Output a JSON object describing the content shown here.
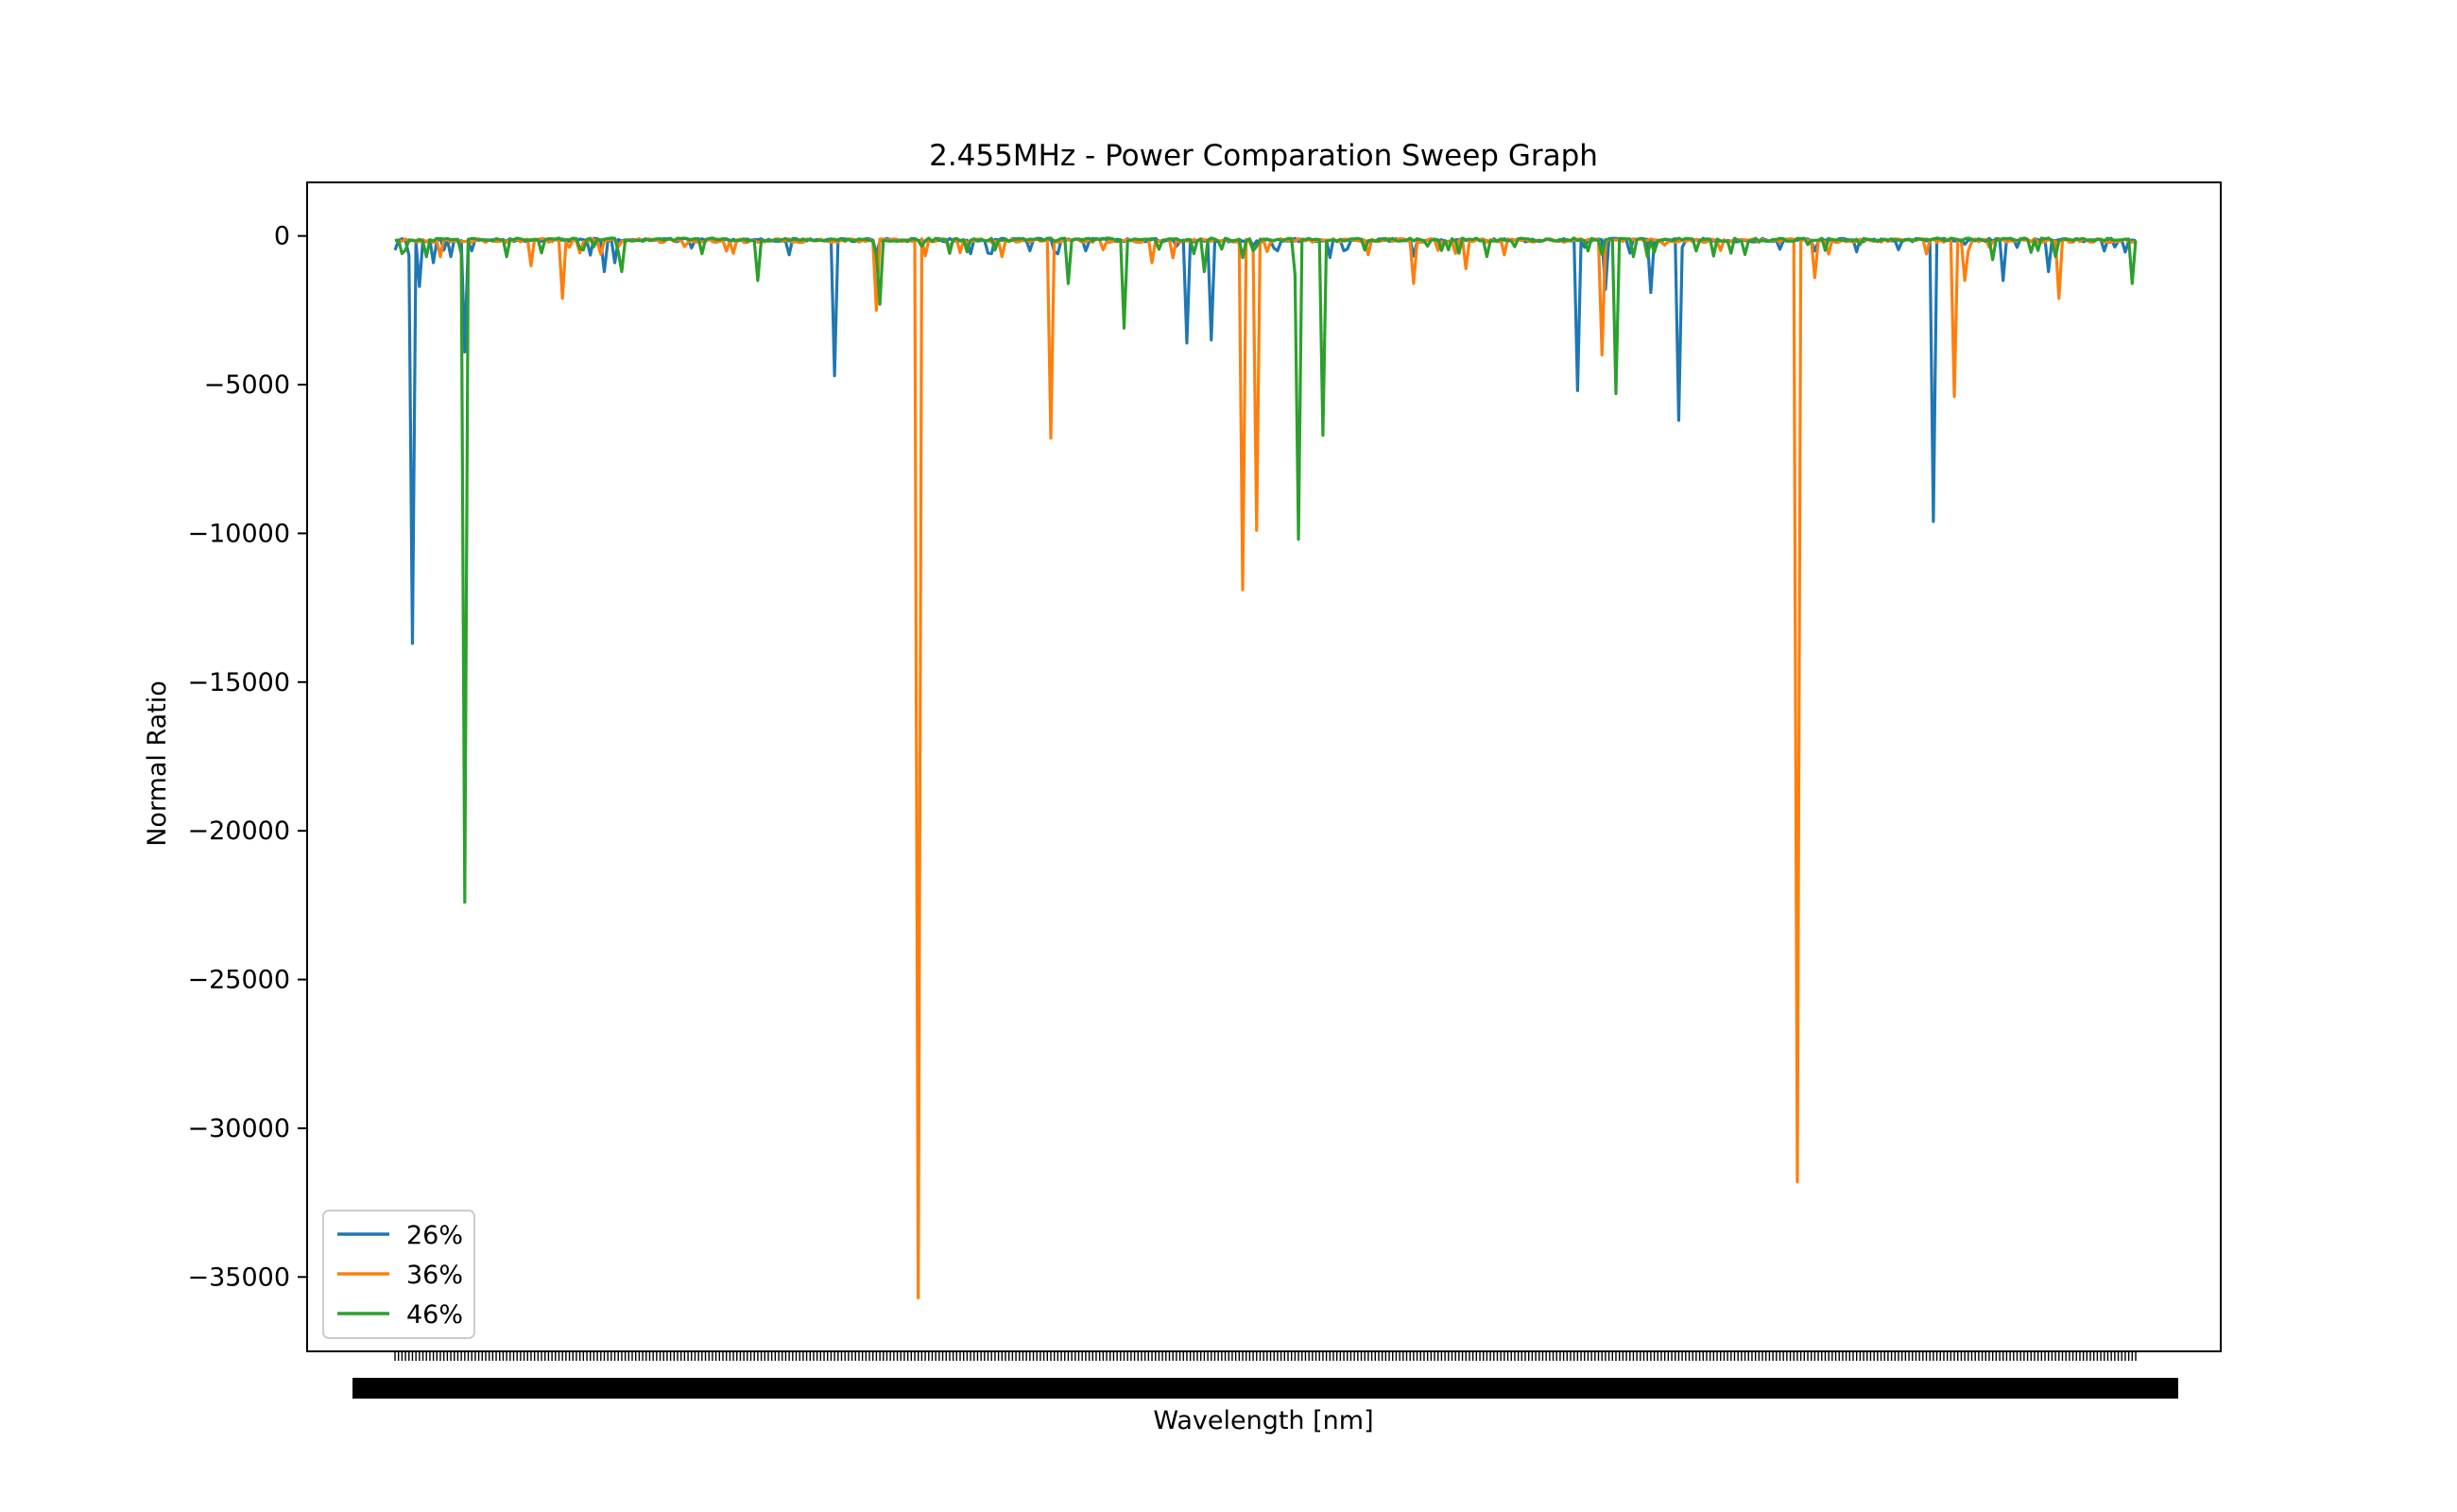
{
  "chart_data": {
    "type": "line",
    "title": "2.455MHz - Power Comparation Sweep Graph",
    "xlabel": "Wavelength [nm]",
    "ylabel": "Normal Ratio",
    "ylim": [
      -37500,
      1800
    ],
    "yticks": [
      0,
      -5000,
      -10000,
      -15000,
      -20000,
      -25000,
      -30000,
      -35000
    ],
    "ytick_labels": [
      "0",
      "−5000",
      "−10000",
      "−15000",
      "−20000",
      "−25000",
      "−30000",
      "−35000"
    ],
    "x_tick_labels_note": "dense overlapping wavelength tick labels (unreadable)",
    "x_tick_count": 500,
    "x_range": [
      0,
      499
    ],
    "grid": false,
    "legend_position": "lower-left",
    "series": [
      {
        "name": "26%",
        "color": "#1f77b4",
        "baseline": -80,
        "noise": 120,
        "dips": [
          {
            "x": 5,
            "y": -13700
          },
          {
            "x": 7,
            "y": -1700
          },
          {
            "x": 11,
            "y": -900
          },
          {
            "x": 20,
            "y": -3900
          },
          {
            "x": 22,
            "y": -500
          },
          {
            "x": 60,
            "y": -1200
          },
          {
            "x": 63,
            "y": -900
          },
          {
            "x": 126,
            "y": -4700
          },
          {
            "x": 138,
            "y": -600
          },
          {
            "x": 165,
            "y": -600
          },
          {
            "x": 182,
            "y": -500
          },
          {
            "x": 198,
            "y": -500
          },
          {
            "x": 227,
            "y": -3600
          },
          {
            "x": 234,
            "y": -3500
          },
          {
            "x": 253,
            "y": -500
          },
          {
            "x": 272,
            "y": -500
          },
          {
            "x": 339,
            "y": -5200
          },
          {
            "x": 347,
            "y": -1800
          },
          {
            "x": 360,
            "y": -1900
          },
          {
            "x": 368,
            "y": -6200
          },
          {
            "x": 441,
            "y": -9600
          },
          {
            "x": 461,
            "y": -1500
          },
          {
            "x": 474,
            "y": -1200
          }
        ]
      },
      {
        "name": "36%",
        "color": "#ff7f0e",
        "baseline": -90,
        "noise": 130,
        "dips": [
          {
            "x": 13,
            "y": -700
          },
          {
            "x": 39,
            "y": -1000
          },
          {
            "x": 48,
            "y": -2100
          },
          {
            "x": 138,
            "y": -2500
          },
          {
            "x": 150,
            "y": -35700
          },
          {
            "x": 174,
            "y": -700
          },
          {
            "x": 188,
            "y": -6800
          },
          {
            "x": 217,
            "y": -900
          },
          {
            "x": 243,
            "y": -11900
          },
          {
            "x": 247,
            "y": -9900
          },
          {
            "x": 292,
            "y": -1600
          },
          {
            "x": 307,
            "y": -1100
          },
          {
            "x": 346,
            "y": -4000
          },
          {
            "x": 402,
            "y": -31800
          },
          {
            "x": 407,
            "y": -1400
          },
          {
            "x": 447,
            "y": -5400
          },
          {
            "x": 450,
            "y": -1500
          },
          {
            "x": 477,
            "y": -2100
          }
        ]
      },
      {
        "name": "46%",
        "color": "#2ca02c",
        "baseline": -70,
        "noise": 110,
        "dips": [
          {
            "x": 9,
            "y": -700
          },
          {
            "x": 20,
            "y": -22400
          },
          {
            "x": 32,
            "y": -700
          },
          {
            "x": 65,
            "y": -1200
          },
          {
            "x": 104,
            "y": -1500
          },
          {
            "x": 139,
            "y": -2300
          },
          {
            "x": 193,
            "y": -1600
          },
          {
            "x": 209,
            "y": -3100
          },
          {
            "x": 232,
            "y": -1200
          },
          {
            "x": 258,
            "y": -1300
          },
          {
            "x": 259,
            "y": -10200
          },
          {
            "x": 266,
            "y": -6700
          },
          {
            "x": 350,
            "y": -5300
          },
          {
            "x": 355,
            "y": -700
          },
          {
            "x": 458,
            "y": -800
          },
          {
            "x": 498,
            "y": -1600
          }
        ]
      }
    ]
  }
}
